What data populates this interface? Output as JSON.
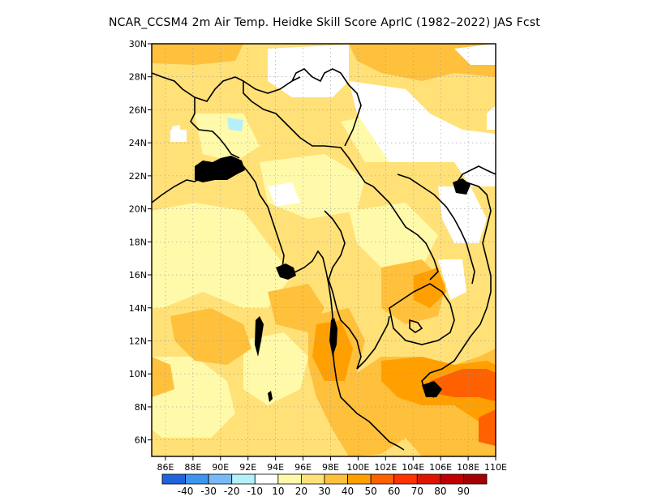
{
  "title": "NCAR_CCSM4  2m Air Temp. Heidke Skill Score AprIC (1982–2022) JAS Fcst",
  "map": {
    "lon_range": [
      85,
      110
    ],
    "lat_range": [
      5,
      30
    ],
    "lat_ticks": [
      "30N",
      "28N",
      "26N",
      "24N",
      "22N",
      "20N",
      "18N",
      "16N",
      "14N",
      "12N",
      "10N",
      "8N",
      "6N"
    ],
    "lon_ticks": [
      "86E",
      "88E",
      "90E",
      "92E",
      "94E",
      "96E",
      "98E",
      "100E",
      "102E",
      "104E",
      "106E",
      "108E",
      "110E"
    ],
    "gridlines": true
  },
  "colorbar": {
    "colors": [
      "#1e64dc",
      "#3c96f0",
      "#78b9fa",
      "#b4f0fa",
      "#ffffff",
      "#fffaaa",
      "#ffe178",
      "#ffc03c",
      "#ffa000",
      "#ff6000",
      "#ff3200",
      "#e11400",
      "#c00000",
      "#a50000"
    ],
    "labels": [
      "-40",
      "-30",
      "-20",
      "-10",
      "10",
      "20",
      "30",
      "40",
      "50",
      "60",
      "70",
      "80",
      "90"
    ]
  },
  "legend_colors": {
    "white": "#ffffff",
    "light_yellow": "#fffaaa",
    "yellow": "#ffe178",
    "light_orange": "#ffc03c",
    "orange": "#ffa000",
    "dark_orange": "#ff6000",
    "coast": "#000000"
  }
}
